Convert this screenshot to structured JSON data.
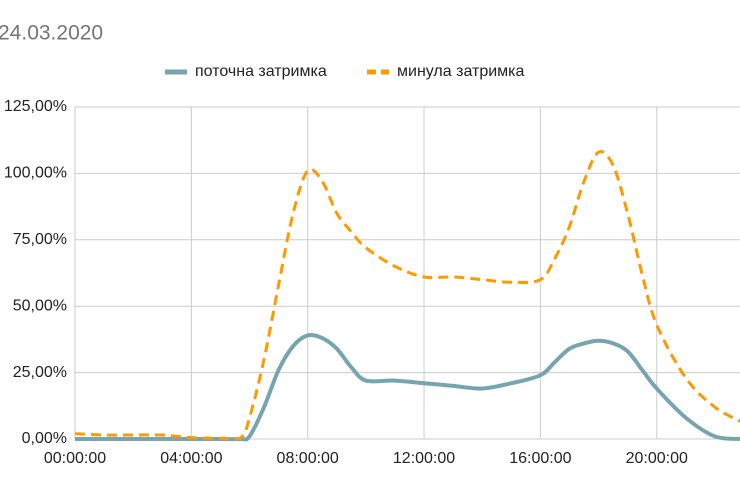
{
  "chart_data": {
    "type": "line",
    "title": "24.03.2020",
    "x": [
      0,
      1,
      2,
      3,
      4,
      5,
      5.7,
      6,
      6.5,
      7,
      7.5,
      8,
      8.5,
      9,
      9.5,
      10,
      11,
      12,
      13,
      14,
      15,
      16,
      16.5,
      17,
      17.5,
      18,
      18.5,
      19,
      19.5,
      20,
      21,
      22,
      23
    ],
    "series": [
      {
        "name": "поточна затримка",
        "color": "#76a5af",
        "dash": false,
        "values": [
          0,
          0,
          0,
          0,
          0,
          0,
          0,
          1,
          12,
          26,
          35,
          39,
          38,
          34,
          27,
          22,
          22,
          21,
          20,
          19,
          21,
          24,
          29,
          34,
          36,
          37,
          36,
          33,
          26,
          19,
          8,
          1,
          0
        ]
      },
      {
        "name": "минула затримка",
        "color": "#ff9900",
        "dash": true,
        "values": [
          2,
          1.5,
          1.5,
          1.5,
          0.5,
          0.3,
          0.5,
          8,
          30,
          58,
          85,
          101,
          97,
          85,
          78,
          72,
          65,
          61,
          61,
          60,
          59,
          60,
          68,
          80,
          97,
          108,
          103,
          85,
          62,
          43,
          23,
          12,
          6
        ]
      }
    ],
    "xlim": [
      0,
      23
    ],
    "xticks": [
      {
        "value": 0,
        "label": "00:00:00"
      },
      {
        "value": 4,
        "label": "04:00:00"
      },
      {
        "value": 8,
        "label": "08:00:00"
      },
      {
        "value": 12,
        "label": "12:00:00"
      },
      {
        "value": 16,
        "label": "16:00:00"
      },
      {
        "value": 20,
        "label": "20:00:00"
      }
    ],
    "ylim": [
      0,
      125
    ],
    "yticks": [
      {
        "value": 0,
        "label": "0,00%"
      },
      {
        "value": 25,
        "label": "25,00%"
      },
      {
        "value": 50,
        "label": "50,00%"
      },
      {
        "value": 75,
        "label": "75,00%"
      },
      {
        "value": 100,
        "label": "100,00%"
      },
      {
        "value": 125,
        "label": "125,00%"
      }
    ],
    "grid": true,
    "legend": "top"
  }
}
